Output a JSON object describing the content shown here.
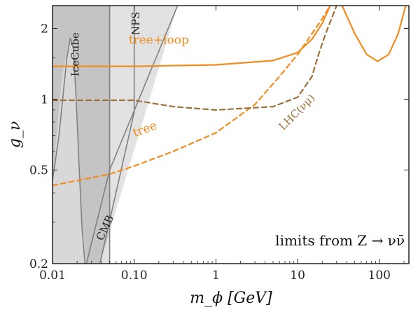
{
  "chart_data": {
    "type": "line",
    "xlabel": "m_ϕ [GeV]",
    "ylabel": "g_ν",
    "xscale": "log",
    "yscale": "log",
    "xlim": [
      0.01,
      230
    ],
    "ylim": [
      0.2,
      2.5
    ],
    "x_ticks": [
      {
        "value": 0.01,
        "label": "0.01"
      },
      {
        "value": 0.1,
        "label": "0.10"
      },
      {
        "value": 1,
        "label": "1"
      },
      {
        "value": 10,
        "label": "10"
      },
      {
        "value": 100,
        "label": "100"
      }
    ],
    "y_ticks": [
      {
        "value": 0.2,
        "label": "0.2"
      },
      {
        "value": 0.5,
        "label": "0.5"
      },
      {
        "value": 1,
        "label": "1"
      },
      {
        "value": 2,
        "label": "2"
      }
    ],
    "annotation": "limits from Z → νν̄",
    "colors": {
      "orange": "#f28c1e",
      "brown": "#a0703a",
      "grey_line": "#808080",
      "icecube_fill": "#c4c4c4",
      "nps_fill": "#e2e2e2",
      "cmb_fill": "#d8d8d8"
    },
    "regions": [
      {
        "name": "IceCube",
        "fill": "#c4c4c4",
        "polygon": [
          [
            0.01,
            2.5
          ],
          [
            0.05,
            2.5
          ],
          [
            0.05,
            0.2
          ],
          [
            0.01,
            0.2
          ]
        ]
      },
      {
        "name": "NPS",
        "fill": "#e2e2e2",
        "polygon": [
          [
            0.05,
            2.5
          ],
          [
            0.34,
            2.5
          ],
          [
            0.038,
            0.2
          ],
          [
            0.05,
            0.2
          ]
        ]
      },
      {
        "name": "CMB",
        "fill": "#d8d8d8",
        "polygon": [
          [
            0.01,
            0.2
          ],
          [
            0.01,
            0.45
          ],
          [
            0.013,
            1.25
          ],
          [
            0.0165,
            1.85
          ],
          [
            0.019,
            1.4
          ],
          [
            0.023,
            0.3
          ],
          [
            0.026,
            0.2
          ]
        ]
      }
    ],
    "series": [
      {
        "name": "tree+loop",
        "style": "solid",
        "color": "#f28c1e",
        "label_x": 0.2,
        "label_y": 1.72,
        "label_rotate": 0,
        "label_size": 17,
        "x": [
          0.01,
          0.1,
          1,
          5,
          10,
          15,
          20,
          25
        ],
        "y": [
          1.38,
          1.38,
          1.4,
          1.46,
          1.58,
          1.8,
          2.1,
          2.5
        ]
      },
      {
        "name": "",
        "style": "solid",
        "color": "#f28c1e",
        "x": [
          35,
          50,
          70,
          95,
          130,
          170,
          210
        ],
        "y": [
          2.5,
          1.9,
          1.55,
          1.45,
          1.55,
          1.9,
          2.5
        ]
      },
      {
        "name": "tree",
        "style": "dashed",
        "color": "#f28c1e",
        "label_x": 0.14,
        "label_y": 0.72,
        "label_rotate": -20,
        "label_size": 17,
        "x": [
          0.01,
          0.05,
          0.1,
          0.3,
          1,
          3,
          6,
          10,
          15,
          20,
          25
        ],
        "y": [
          0.43,
          0.48,
          0.52,
          0.6,
          0.72,
          0.95,
          1.25,
          1.55,
          1.9,
          2.2,
          2.5
        ]
      },
      {
        "name": "LHC(νμ)",
        "style": "dashed",
        "color": "#a0703a",
        "label_x": 10.5,
        "label_y": 0.86,
        "label_rotate": -45,
        "label_size": 15,
        "x": [
          0.01,
          0.1,
          0.3,
          1,
          5,
          10,
          15,
          18,
          22,
          30
        ],
        "y": [
          0.99,
          0.99,
          0.93,
          0.9,
          0.93,
          1.02,
          1.25,
          1.55,
          1.9,
          2.5
        ]
      },
      {
        "name": "IceCube",
        "style": "solid",
        "color": "#808080",
        "label_x": 0.021,
        "label_y": 1.55,
        "label_rotate": -90,
        "label_size": 15,
        "x": [
          0.05,
          0.05
        ],
        "y": [
          2.5,
          0.2
        ]
      },
      {
        "name": "NPS",
        "style": "solid",
        "color": "#808080",
        "label_x": 0.115,
        "label_y": 2.1,
        "label_rotate": -90,
        "label_size": 15,
        "x": [
          0.1,
          0.1,
          0.038
        ],
        "y": [
          2.5,
          0.88,
          0.2
        ]
      },
      {
        "name": "CMB",
        "style": "solid",
        "color": "#808080",
        "label_x": 0.048,
        "label_y": 0.28,
        "label_rotate": -65,
        "label_size": 15,
        "x": [
          0.34,
          0.05,
          0.026
        ],
        "y": [
          2.5,
          0.5,
          0.2
        ]
      },
      {
        "name": "",
        "style": "solid",
        "color": "#808080",
        "x": [
          0.01,
          0.012,
          0.0135,
          0.015,
          0.0165,
          0.018,
          0.0195,
          0.021,
          0.023,
          0.025
        ],
        "y": [
          0.45,
          0.7,
          1.05,
          1.5,
          1.82,
          1.65,
          1.0,
          0.55,
          0.28,
          0.2
        ]
      }
    ]
  }
}
